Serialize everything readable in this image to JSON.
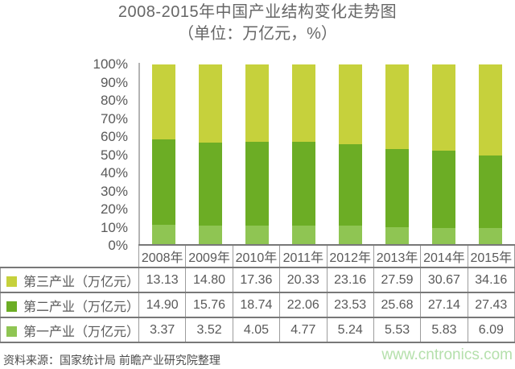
{
  "title": "2008-2015年中国产业结构变化走势图",
  "subtitle": "（单位：万亿元，%）",
  "source": "资料来源：国家统计局 前瞻产业研究院整理",
  "watermark": "www.cntronics.com",
  "colors": {
    "tertiary_industry": "#c6d13c",
    "secondary_industry": "#6cad25",
    "primary_industry": "#8fc553",
    "text_gray": "#595959",
    "axis_gray": "#b3b3b3",
    "watermark_green": "#b5e0ac"
  },
  "chart_data": {
    "type": "bar",
    "variant": "stacked-100-percent",
    "title": "2008-2015年中国产业结构变化走势图",
    "subtitle": "（单位：万亿元，%）",
    "categories": [
      "2008年",
      "2009年",
      "2010年",
      "2011年",
      "2012年",
      "2013年",
      "2014年",
      "2015年"
    ],
    "series": [
      {
        "name": "第三产业（万亿元）",
        "color": "#c6d13c",
        "values": [
          "13.13",
          "14.80",
          "17.36",
          "20.33",
          "23.16",
          "27.59",
          "30.67",
          "34.16"
        ]
      },
      {
        "name": "第二产业（万亿元）",
        "color": "#6cad25",
        "values": [
          "14.90",
          "15.76",
          "18.74",
          "22.06",
          "23.53",
          "25.68",
          "27.14",
          "27.43"
        ]
      },
      {
        "name": "第一产业（万亿元）",
        "color": "#8fc553",
        "values": [
          "3.37",
          "3.52",
          "4.05",
          "4.77",
          "5.24",
          "5.53",
          "5.83",
          "6.09"
        ]
      }
    ],
    "y_ticks": [
      "0%",
      "10%",
      "20%",
      "30%",
      "40%",
      "50%",
      "60%",
      "70%",
      "80%",
      "90%",
      "100%"
    ],
    "ylim": [
      0,
      100
    ],
    "xlabel": "",
    "ylabel": "",
    "grid": false,
    "legend_position": "table-left"
  }
}
